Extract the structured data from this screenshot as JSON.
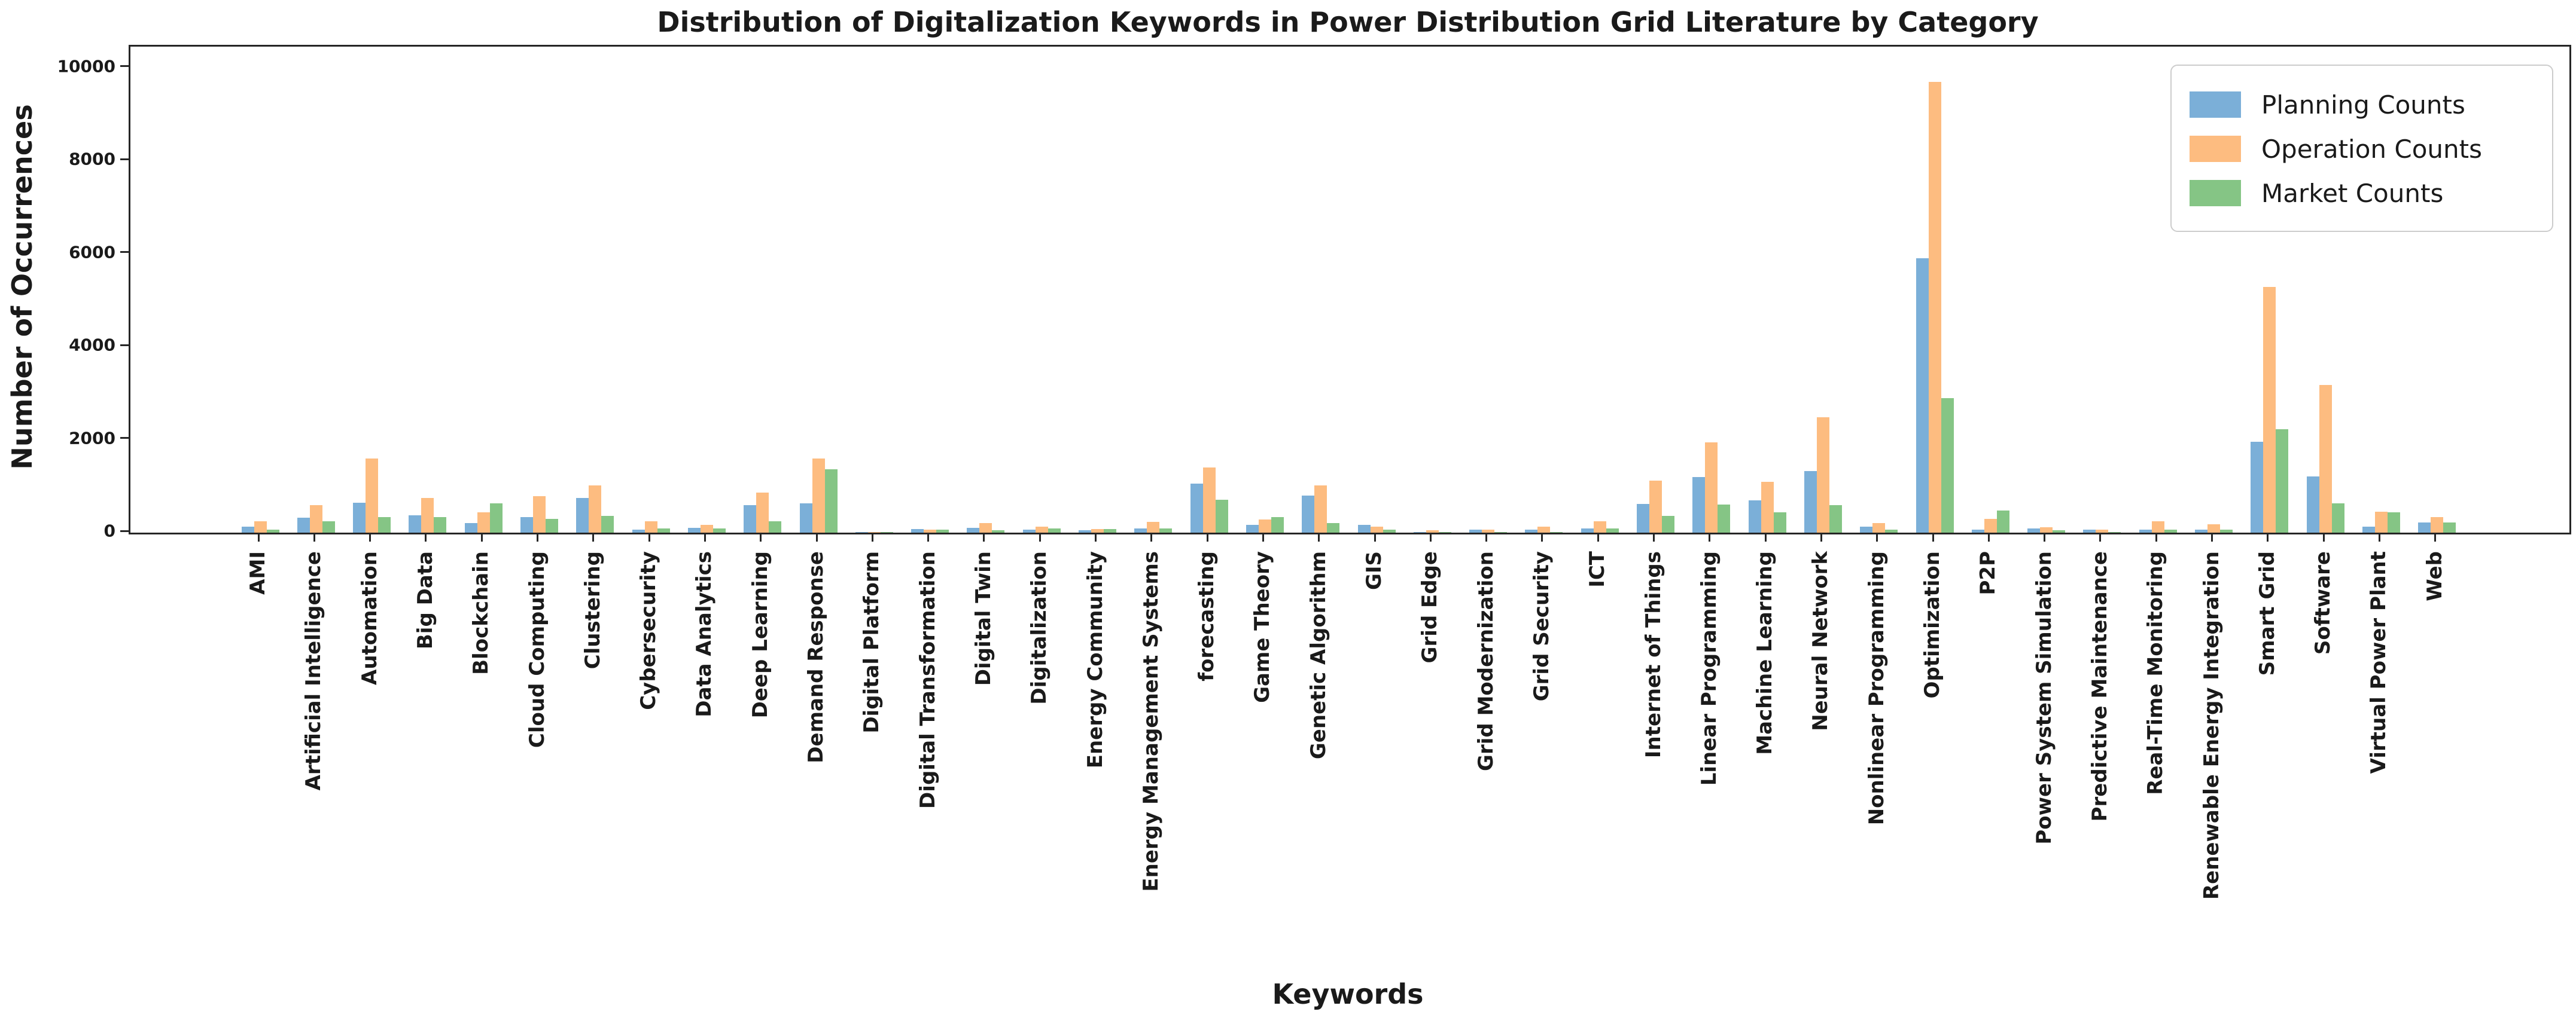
{
  "title": "Distribution of Digitalization Keywords in Power Distribution Grid Literature by Category",
  "x_axis_title": "Keywords",
  "y_axis_title": "Number of Occurrences",
  "legend": {
    "items": [
      {
        "label": "Planning Counts",
        "color": "#7BAFD8"
      },
      {
        "label": "Operation Counts",
        "color": "#FDBC80"
      },
      {
        "label": "Market Counts",
        "color": "#85C585"
      }
    ]
  },
  "chart_data": {
    "type": "bar",
    "title": "Distribution of Digitalization Keywords in Power Distribution Grid Literature by Category",
    "xlabel": "Keywords",
    "ylabel": "Number of Occurrences",
    "ylim": [
      0,
      10000
    ],
    "yticks": [
      0,
      2000,
      4000,
      6000,
      8000,
      10000
    ],
    "grid": false,
    "legend_position": "upper right",
    "x_tick_rotation": 90,
    "categories": [
      "AMI",
      "Artificial Intelligence",
      "Automation",
      "Big Data",
      "Blockchain",
      "Cloud Computing",
      "Clustering",
      "Cybersecurity",
      "Data Analytics",
      "Deep Learning",
      "Demand Response",
      "Digital Platform",
      "Digital Transformation",
      "Digital Twin",
      "Digitalization",
      "Energy Community",
      "Energy Management Systems",
      "forecasting",
      "Game Theory",
      "Genetic Algorithm",
      "GIS",
      "Grid Edge",
      "Grid Modernization",
      "Grid Security",
      "ICT",
      "Internet of Things",
      "Linear Programming",
      "Machine Learning",
      "Neural Network",
      "Nonlinear Programming",
      "Optimization",
      "P2P",
      "Power System Simulation",
      "Predictive Maintenance",
      "Real-Time Monitoring",
      "Renewable Energy Integration",
      "Smart Grid",
      "Software",
      "Virtual Power Plant",
      "Web"
    ],
    "series": [
      {
        "name": "Planning Counts",
        "color": "#7BAFD8",
        "values": [
          130,
          320,
          640,
          370,
          210,
          330,
          750,
          70,
          100,
          590,
          630,
          10,
          80,
          100,
          70,
          50,
          90,
          1050,
          170,
          800,
          170,
          15,
          70,
          70,
          90,
          620,
          1200,
          700,
          1320,
          130,
          5900,
          60,
          90,
          60,
          60,
          60,
          1950,
          1210,
          130,
          220
        ]
      },
      {
        "name": "Operation Counts",
        "color": "#FDBC80",
        "values": [
          240,
          590,
          1590,
          750,
          440,
          790,
          1020,
          250,
          170,
          860,
          1600,
          15,
          60,
          210,
          130,
          80,
          230,
          1400,
          280,
          1020,
          130,
          50,
          70,
          130,
          240,
          1120,
          1940,
          1090,
          2480,
          200,
          9700,
          290,
          120,
          60,
          240,
          180,
          5290,
          3180,
          450,
          330
        ]
      },
      {
        "name": "Market Counts",
        "color": "#85C585",
        "values": [
          60,
          250,
          330,
          330,
          630,
          290,
          360,
          90,
          90,
          240,
          1360,
          5,
          60,
          50,
          90,
          80,
          90,
          710,
          330,
          210,
          60,
          10,
          10,
          10,
          90,
          360,
          600,
          440,
          590,
          60,
          2900,
          480,
          50,
          10,
          60,
          60,
          2220,
          630,
          440,
          220
        ]
      }
    ]
  }
}
